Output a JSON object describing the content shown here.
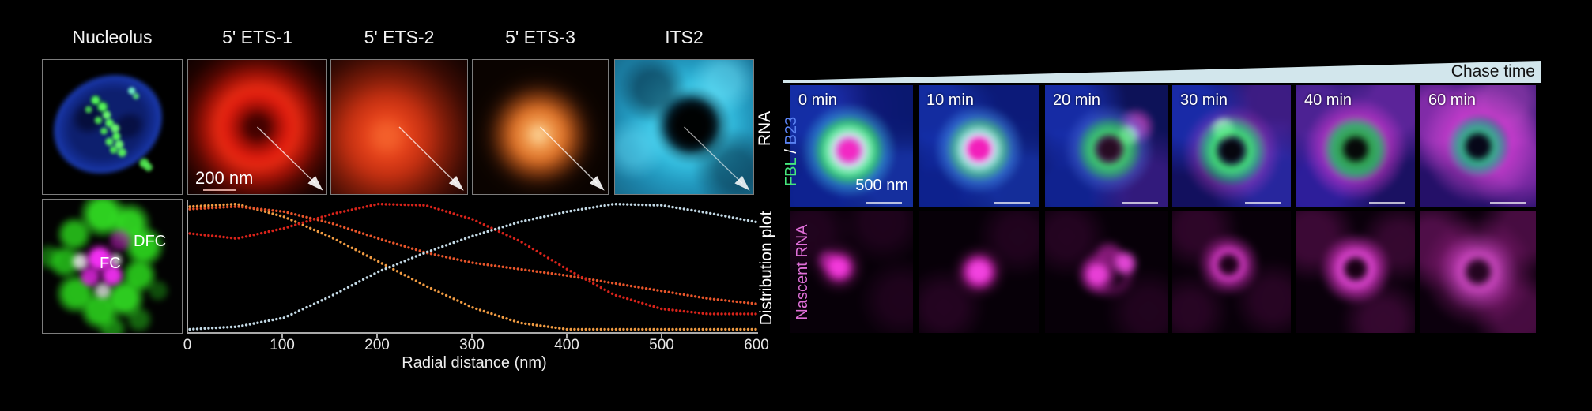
{
  "figure_left": {
    "panel_titles": [
      "Nucleolus",
      "5' ETS-1",
      "5' ETS-2",
      "5' ETS-3",
      "ITS2"
    ],
    "row_label": "RNA",
    "scale_bar": "200 nm",
    "inset_labels": {
      "dfc": "DFC",
      "fc": "FC"
    }
  },
  "chart_data": {
    "type": "line",
    "style": "dotted",
    "title": "",
    "xlabel": "Radial distance (nm)",
    "ylabel": "Distribution plot",
    "xlim": [
      0,
      600
    ],
    "ylim": [
      0,
      1
    ],
    "xticks": [
      0,
      100,
      200,
      300,
      400,
      500,
      600
    ],
    "grid": false,
    "legend_position": "none",
    "x_step": 50,
    "x": [
      0,
      50,
      100,
      150,
      200,
      250,
      300,
      350,
      400,
      450,
      500,
      550,
      600
    ],
    "series": [
      {
        "name": "5' ETS-3",
        "color": "#f09b42",
        "values": [
          0.97,
          0.99,
          0.89,
          0.73,
          0.54,
          0.35,
          0.18,
          0.06,
          0.01,
          0.01,
          0.01,
          0.01,
          0.01
        ]
      },
      {
        "name": "5' ETS-2",
        "color": "#e8552a",
        "values": [
          0.95,
          0.97,
          0.93,
          0.84,
          0.72,
          0.61,
          0.53,
          0.48,
          0.43,
          0.37,
          0.31,
          0.25,
          0.21
        ]
      },
      {
        "name": "5' ETS-1",
        "color": "#d8231a",
        "values": [
          0.76,
          0.72,
          0.8,
          0.91,
          0.99,
          0.98,
          0.87,
          0.7,
          0.48,
          0.28,
          0.17,
          0.13,
          0.13
        ]
      },
      {
        "name": "ITS2",
        "color": "#c2d8e4",
        "values": [
          0.01,
          0.03,
          0.1,
          0.27,
          0.46,
          0.61,
          0.74,
          0.85,
          0.93,
          0.99,
          0.98,
          0.92,
          0.85
        ]
      }
    ]
  },
  "figure_right": {
    "banner": "Chase time",
    "time_labels": [
      "0 min",
      "10 min",
      "20 min",
      "30 min",
      "40 min",
      "60 min"
    ],
    "row1_label": {
      "fbl": "FBL",
      "sep": " / ",
      "b23": "B23"
    },
    "row2_label": "Nascent RNA",
    "scale_bar": "500 nm"
  },
  "colors": {
    "fbl_green": "#45e87d",
    "b23_blue": "#5a82f2",
    "nascent_magenta": "#e06fd8",
    "banner_fill": "#d2e6ec",
    "axis_grey": "#a8a8a8"
  }
}
